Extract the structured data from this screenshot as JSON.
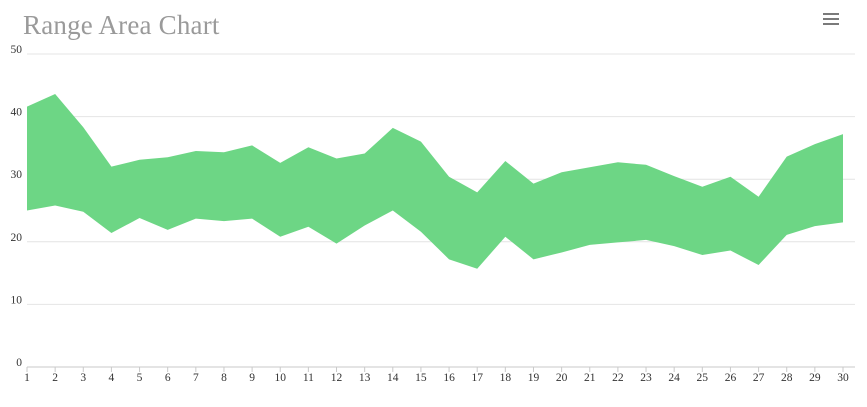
{
  "title": "Range Area Chart",
  "toolbar": {
    "menu_icon": "hamburger-menu-icon"
  },
  "colors": {
    "area_fill": "#6dd685",
    "grid": "#e4e4e4",
    "axis": "#c9c9c9",
    "title": "#9a9a9a"
  },
  "chart_data": {
    "type": "area",
    "subtype": "range",
    "title": "Range Area Chart",
    "xlabel": "",
    "ylabel": "",
    "x": [
      1,
      2,
      3,
      4,
      5,
      6,
      7,
      8,
      9,
      10,
      11,
      12,
      13,
      14,
      15,
      16,
      17,
      18,
      19,
      20,
      21,
      22,
      23,
      24,
      25,
      26,
      27,
      28,
      29,
      30
    ],
    "low": [
      25.0,
      25.8,
      24.8,
      21.4,
      23.8,
      21.9,
      23.7,
      23.3,
      23.7,
      20.8,
      22.4,
      19.7,
      22.6,
      25.0,
      21.6,
      17.2,
      15.7,
      20.8,
      17.2,
      18.3,
      19.5,
      19.9,
      20.3,
      19.3,
      17.9,
      18.6,
      16.3,
      21.1,
      22.5,
      23.1
    ],
    "high": [
      41.6,
      43.6,
      38.3,
      32.0,
      33.1,
      33.5,
      34.5,
      34.3,
      35.4,
      32.6,
      35.1,
      33.3,
      34.1,
      38.2,
      36.0,
      30.4,
      27.9,
      32.9,
      29.3,
      31.1,
      31.9,
      32.7,
      32.3,
      30.5,
      28.8,
      30.4,
      27.2,
      33.6,
      35.6,
      37.2
    ],
    "ylim": [
      0,
      50
    ],
    "yticks": [
      0,
      10,
      20,
      30,
      40,
      50
    ],
    "grid": true,
    "legend": "none"
  }
}
